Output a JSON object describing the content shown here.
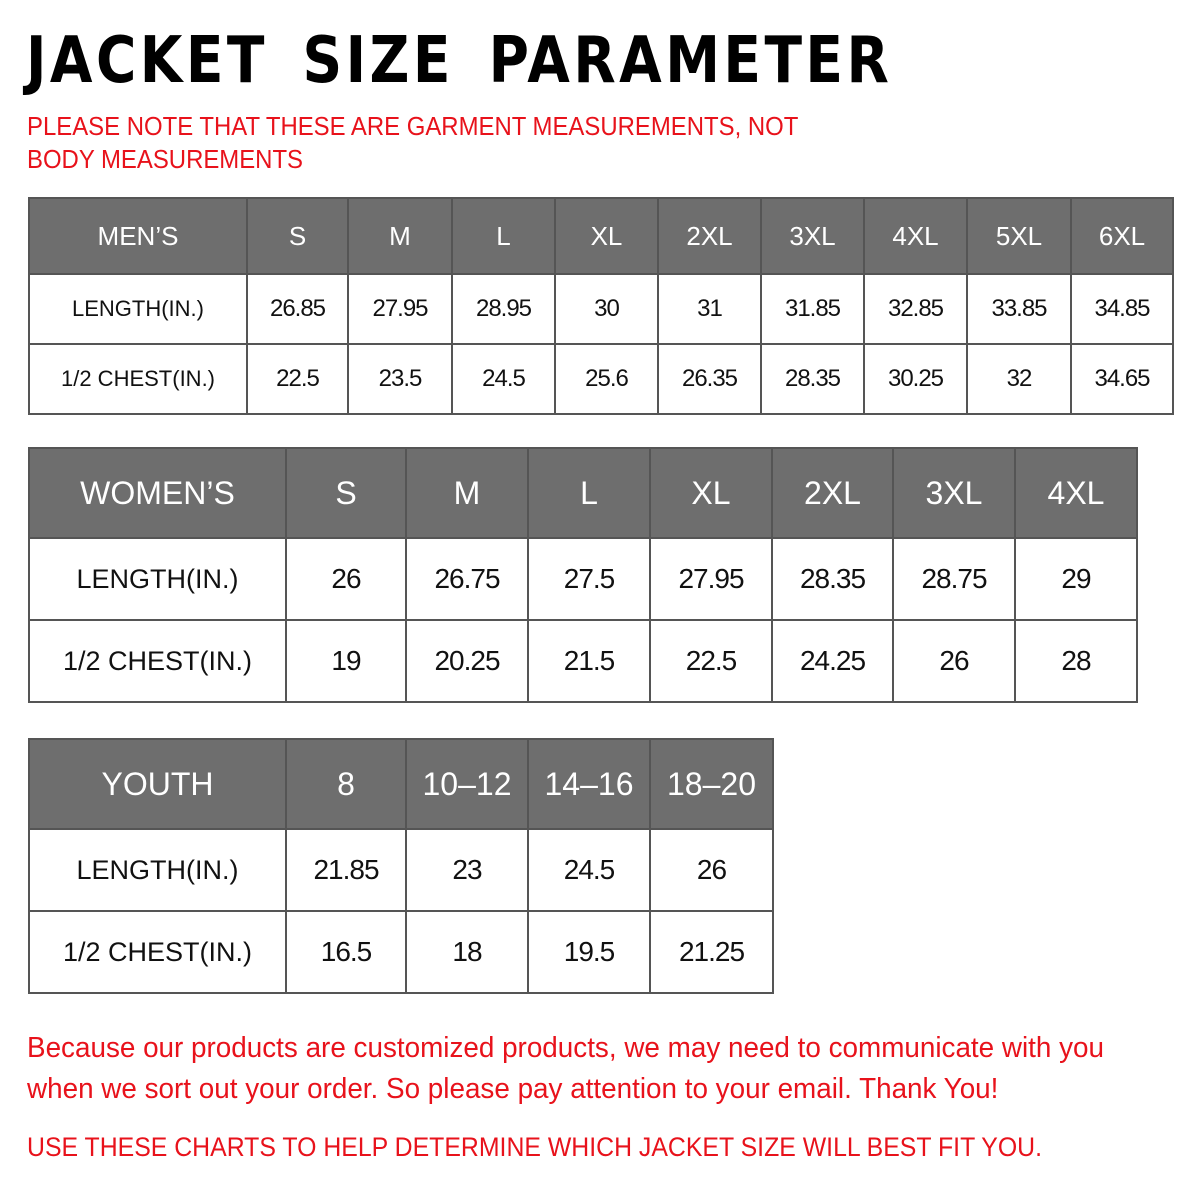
{
  "title": "JACKET SIZE PARAMETER",
  "note": "PLEASE NOTE THAT THESE ARE GARMENT MEASUREMENTS, NOT BODY MEASUREMENTS",
  "tables": {
    "men": {
      "headers": [
        "MEN’S",
        "S",
        "M",
        "L",
        "XL",
        "2XL",
        "3XL",
        "4XL",
        "5XL",
        "6XL"
      ],
      "rows": [
        [
          "LENGTH(IN.)",
          "26.85",
          "27.95",
          "28.95",
          "30",
          "31",
          "31.85",
          "32.85",
          "33.85",
          "34.85"
        ],
        [
          "1/2 CHEST(IN.)",
          "22.5",
          "23.5",
          "24.5",
          "25.6",
          "26.35",
          "28.35",
          "30.25",
          "32",
          "34.65"
        ]
      ]
    },
    "women": {
      "headers": [
        "WOMEN’S",
        "S",
        "M",
        "L",
        "XL",
        "2XL",
        "3XL",
        "4XL"
      ],
      "rows": [
        [
          "LENGTH(IN.)",
          "26",
          "26.75",
          "27.5",
          "27.95",
          "28.35",
          "28.75",
          "29"
        ],
        [
          "1/2 CHEST(IN.)",
          "19",
          "20.25",
          "21.5",
          "22.5",
          "24.25",
          "26",
          "28"
        ]
      ]
    },
    "youth": {
      "headers": [
        "YOUTH",
        "8",
        "10–12",
        "14–16",
        "18–20"
      ],
      "rows": [
        [
          "LENGTH(IN.)",
          "21.85",
          "23",
          "24.5",
          "26"
        ],
        [
          "1/2 CHEST(IN.)",
          "16.5",
          "18",
          "19.5",
          "21.25"
        ]
      ]
    }
  },
  "footer": {
    "message": "Because our products are customized products, we may need to communicate with you when we sort out your order. So please pay attention to your email. Thank You!",
    "instruction": "USE THESE CHARTS TO HELP DETERMINE WHICH JACKET SIZE WILL BEST FIT YOU."
  },
  "colors": {
    "header_bg": "#6e6e6e",
    "accent_red": "#e8121b",
    "border": "#555555"
  }
}
